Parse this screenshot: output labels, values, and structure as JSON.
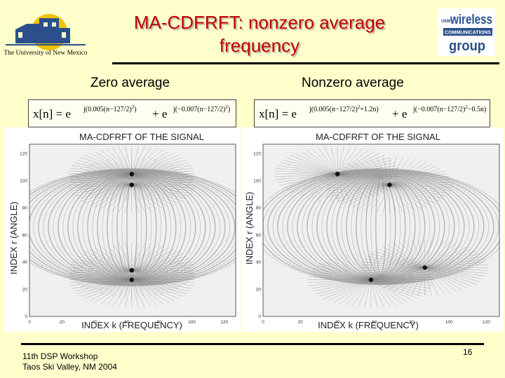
{
  "slide": {
    "title_line1": "MA-CDFRFT: nonzero average",
    "title_line2": "frequency",
    "logo_left_text": "The University of New Mexico",
    "logo_right_small": "UNM",
    "logo_right_word1": "wireless",
    "logo_right_word2": "COMMUNICATIONS",
    "logo_right_word3": "group",
    "footer_line1": "11th DSP Workshop",
    "footer_line2": "Taos Ski Valley, NM 2004",
    "page_number": "16"
  },
  "left": {
    "heading": "Zero average",
    "formula_lhs": "x[n] = e",
    "formula_exp1": "j(0.005(n−127/2)",
    "formula_exp1_sup": "2",
    "formula_exp1_close": ")",
    "formula_plus": "+ e",
    "formula_exp2": "j(−0.007(n−127/2)",
    "formula_exp2_sup": "2",
    "formula_exp2_close": ")",
    "plot_title": "MA-CDFRFT OF THE SIGNAL",
    "xlabel": "INDEX k (FREQUENCY)",
    "ylabel": "INDEX r (ANGLE)"
  },
  "right": {
    "heading": "Nonzero average",
    "formula_lhs": "x[n] = e",
    "formula_exp1": "j(0.005(n−127/2)",
    "formula_exp1_sup": "2",
    "formula_exp1_close": "+1.2n)",
    "formula_plus": "+ e",
    "formula_exp2": "j(−0.007(n−127/2)",
    "formula_exp2_sup": "2",
    "formula_exp2_close": "−0.5n)",
    "plot_title": "MA-CDFRFT OF THE SIGNAL",
    "xlabel": "INDEX k (FREQUENCY)",
    "ylabel": "INDEX r (ANGLE)"
  },
  "axes": {
    "x_ticks": [
      "0",
      "20",
      "40",
      "60",
      "80",
      "100",
      "120"
    ],
    "y_ticks": [
      "0",
      "20",
      "40",
      "60",
      "80",
      "100",
      "120"
    ],
    "xlim": [
      0,
      127
    ],
    "ylim": [
      0,
      127
    ]
  },
  "chart_data": [
    {
      "type": "heatmap",
      "title": "MA-CDFRFT OF THE SIGNAL",
      "xlabel": "INDEX k (FREQUENCY)",
      "ylabel": "INDEX r (ANGLE)",
      "xlim": [
        0,
        127
      ],
      "ylim": [
        0,
        127
      ],
      "focal_points": [
        {
          "x": 63,
          "y": 105
        },
        {
          "x": 63,
          "y": 97
        },
        {
          "x": 63,
          "y": 34
        },
        {
          "x": 63,
          "y": 27
        }
      ]
    },
    {
      "type": "heatmap",
      "title": "MA-CDFRFT OF THE SIGNAL",
      "xlabel": "INDEX k (FREQUENCY)",
      "ylabel": "INDEX r (ANGLE)",
      "xlim": [
        0,
        127
      ],
      "ylim": [
        0,
        127
      ],
      "focal_points": [
        {
          "x": 40,
          "y": 105
        },
        {
          "x": 68,
          "y": 97
        },
        {
          "x": 87,
          "y": 36
        },
        {
          "x": 58,
          "y": 27
        }
      ]
    }
  ],
  "colors": {
    "background": "#ffffcc",
    "title": "#c00000",
    "logo_blue": "#2a4f8a",
    "logo_sun": "#f2c200"
  }
}
